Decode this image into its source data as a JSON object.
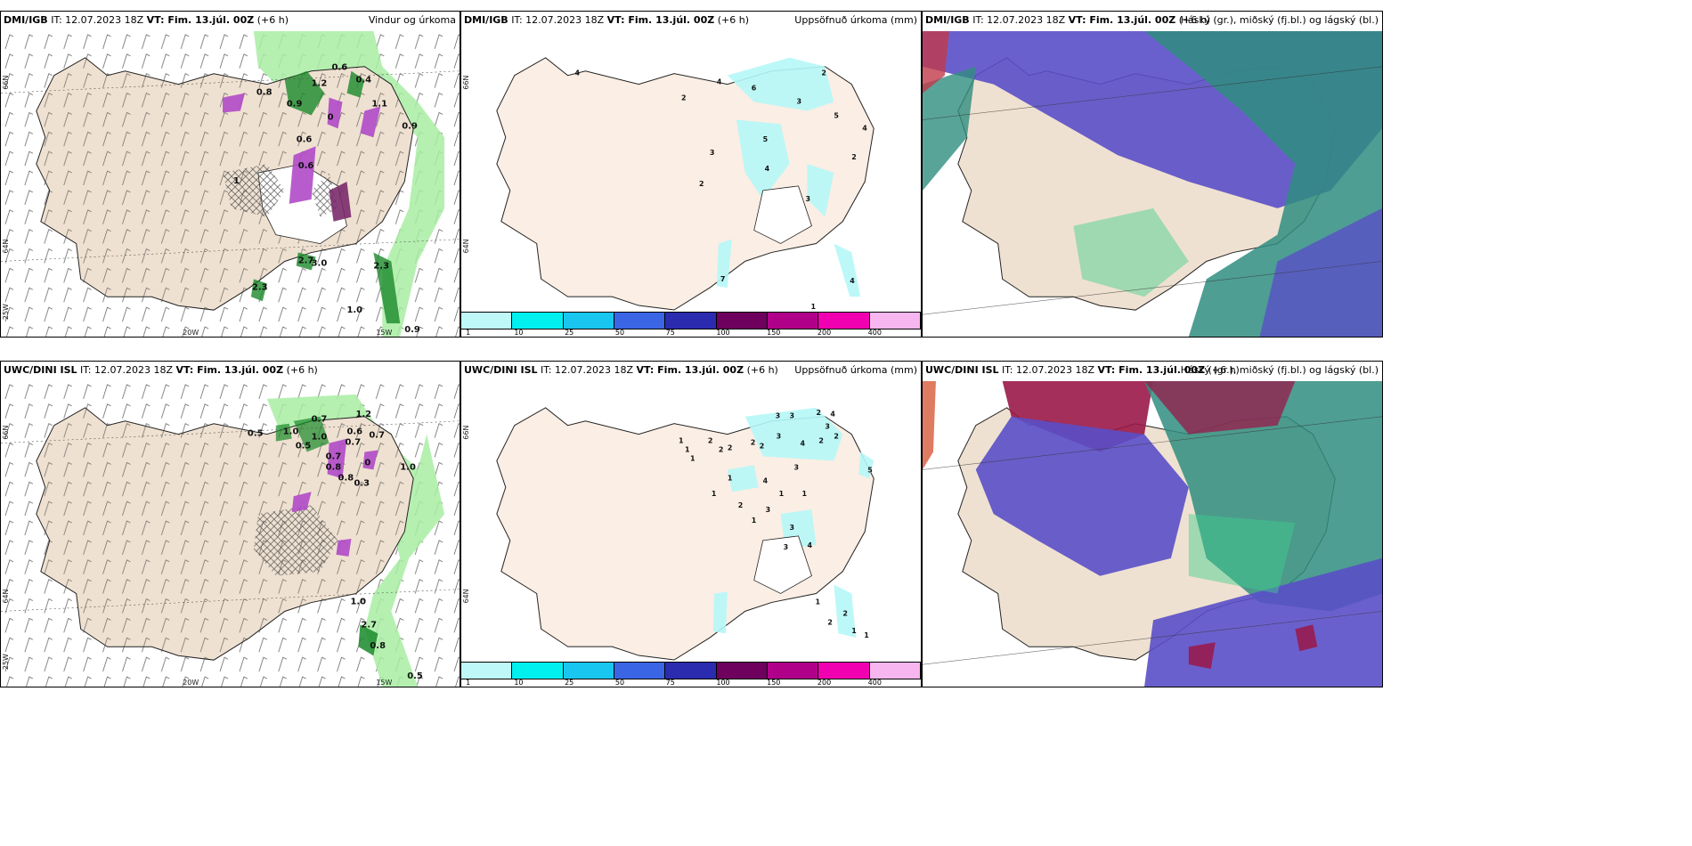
{
  "panels": [
    {
      "model": "DMI/IGB",
      "it": "IT: 12.07.2023 18Z",
      "vt_label": "VT: Fim. 13.júl. 00Z",
      "lead": "(+6 h)",
      "title": "Vindur og úrkoma",
      "values": [
        "0.6",
        "1.2",
        "0.4",
        "0.8",
        "0.9",
        "1.1",
        "0",
        "0.9",
        "0.6",
        "0.6",
        "1",
        "2.7",
        "3.0",
        "2.3",
        "2.3",
        "1.0",
        "0.9"
      ],
      "axis": {
        "lat1": "66N",
        "lat2": "64N",
        "lon1": "25W",
        "lon2": "20W",
        "lon3": "15W"
      }
    },
    {
      "model": "DMI/IGB",
      "it": "IT: 12.07.2023 18Z",
      "vt_label": "VT: Fim. 13.júl. 00Z",
      "lead": "(+6 h)",
      "title": "Uppsöfnuð úrkoma (mm)",
      "values": [
        "4",
        "2",
        "4",
        "6",
        "3",
        "2",
        "3",
        "5",
        "4",
        "4",
        "5",
        "2",
        "2",
        "3",
        "7",
        "4",
        "1"
      ],
      "axis": {
        "lat1": "66N",
        "lat2": "64N"
      }
    },
    {
      "model": "DMI/IGB",
      "it": "IT: 12.07.2023 18Z",
      "vt_label": "VT: Fim. 13.júl. 00Z",
      "lead": "(+6 h)",
      "title": "Háský (gr.), miðský (fj.bl.) og lágský (bl.)"
    },
    {
      "model": "UWC/DINI ISL",
      "it": "IT: 12.07.2023 18Z",
      "vt_label": "VT: Fim. 13.júl. 00Z",
      "lead": "(+6 h)",
      "title": "",
      "values": [
        "0.7",
        "1.2",
        "0.5",
        "1.0",
        "1.0",
        "0.6",
        "0.7",
        "0.5",
        "0.7",
        "0.7",
        "0.8",
        "0",
        "0.8",
        "0.3",
        "1.0",
        "1.0",
        "2.7",
        "0.8",
        "0.5"
      ],
      "axis": {
        "lat1": "66N",
        "lat2": "64N",
        "lon1": "25W",
        "lon2": "20W",
        "lon3": "15W"
      }
    },
    {
      "model": "UWC/DINI ISL",
      "it": "IT: 12.07.2023 18Z",
      "vt_label": "VT: Fim. 13.júl. 00Z",
      "lead": "(+6 h)",
      "title": "Uppsöfnuð úrkoma (mm)",
      "values": [
        "1",
        "1",
        "1",
        "2",
        "2",
        "2",
        "3",
        "3",
        "3",
        "2",
        "2",
        "2",
        "3",
        "4",
        "2",
        "2",
        "4",
        "5",
        "1",
        "1",
        "4",
        "3",
        "1",
        "1",
        "2",
        "1",
        "3",
        "3",
        "4",
        "3",
        "1",
        "2",
        "2",
        "1",
        "1"
      ],
      "axis": {
        "lat1": "66N",
        "lat2": "64N"
      }
    },
    {
      "model": "UWC/DINI ISL",
      "it": "IT: 12.07.2023 18Z",
      "vt_label": "VT: Fim. 13.júl. 00Z",
      "lead": "(+6 h)",
      "title": "Háský (gr.), miðský (fj.bl.) og lágský (bl.)"
    }
  ],
  "colorbar": {
    "labels": [
      "1",
      "10",
      "25",
      "50",
      "75",
      "100",
      "150",
      "200",
      "400"
    ],
    "colors": [
      "#bff8f8",
      "#00f0f0",
      "#19c6ef",
      "#3a66e6",
      "#2b2bb0",
      "#6e005e",
      "#b0008a",
      "#f000b0",
      "#f7b6ef"
    ]
  },
  "colors": {
    "land": "#efe1d1",
    "land_light": "#fbeee4",
    "green": "#a8eda3",
    "dark_green": "#1a8a2a",
    "purple": "#b04ac8",
    "cyan": "#b5f7f7",
    "teal": "#2f8d80",
    "indigo": "#5a4fc8",
    "crimson": "#9a1848",
    "sea": "#ffffff"
  }
}
